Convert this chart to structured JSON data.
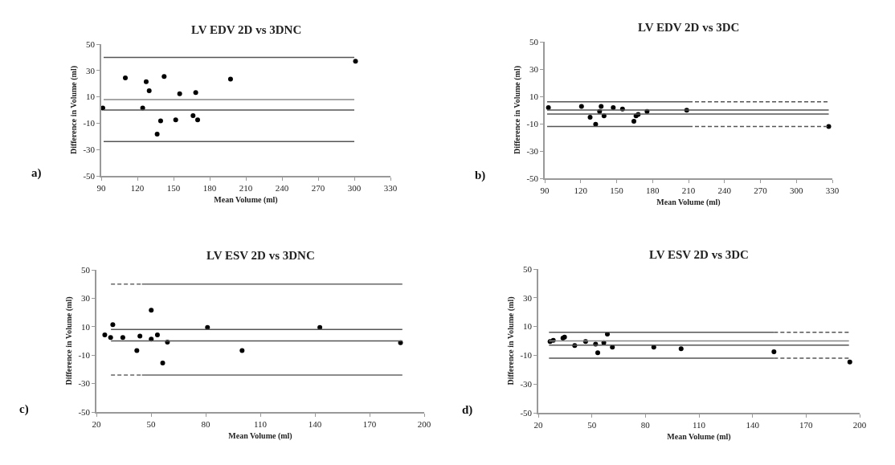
{
  "chart_data": [
    {
      "type": "scatter",
      "title": "LV EDV 2D vs 3DNC",
      "xlabel": "Mean Volume (ml)",
      "ylabel": "Difference in Volume (ml)",
      "annotations": [
        "a)"
      ],
      "grid": false,
      "xlim": [
        90,
        330
      ],
      "xticks": [
        90,
        120,
        150,
        180,
        210,
        240,
        270,
        300,
        330
      ],
      "ylim": [
        -50,
        50
      ],
      "yticks": [
        -50,
        -30,
        -10,
        10,
        30,
        50
      ],
      "series": [
        {
          "type": "scatter",
          "marker": "circle",
          "color": "#000000",
          "x": [
            91.3,
            110,
            127.3,
            129.8,
            124.4,
            142.2,
            139.3,
            136.4,
            151.8,
            155.1,
            168.4,
            166.2,
            170,
            197.3,
            301
          ],
          "values": [
            1.6,
            24.4,
            21.5,
            14.6,
            1.6,
            25.4,
            -8.3,
            -18.3,
            -7.5,
            12.4,
            13.2,
            -4.3,
            -7.5,
            23.4,
            37
          ]
        },
        {
          "type": "line",
          "color": "#555555",
          "line_style": "solid",
          "x": [
            92,
            300
          ],
          "values": [
            40,
            40
          ]
        },
        {
          "type": "line",
          "color": "#888888",
          "line_style": "solid",
          "x": [
            92,
            300
          ],
          "values": [
            8,
            8
          ]
        },
        {
          "type": "line",
          "color": "#555555",
          "line_style": "solid",
          "x": [
            92,
            300
          ],
          "values": [
            0,
            0
          ]
        },
        {
          "type": "line",
          "color": "#555555",
          "line_style": "solid",
          "x": [
            92,
            300
          ],
          "values": [
            -24,
            -24
          ]
        }
      ]
    },
    {
      "type": "scatter",
      "title": "LV EDV 2D vs 3DC",
      "xlabel": "Mean Volume (ml)",
      "ylabel": "Difference in Volume (ml)",
      "annotations": [
        "b)"
      ],
      "grid": false,
      "xlim": [
        90,
        330
      ],
      "xticks": [
        90,
        120,
        150,
        180,
        210,
        240,
        270,
        300,
        330
      ],
      "ylim": [
        -50,
        50
      ],
      "yticks": [
        -50,
        -30,
        -10,
        10,
        30,
        50
      ],
      "series": [
        {
          "type": "scatter",
          "marker": "circle",
          "color": "#000000",
          "x": [
            93.1,
            120.7,
            127.9,
            132.5,
            135.8,
            137.1,
            139.5,
            147.2,
            154.9,
            164.4,
            166.2,
            168,
            175.4,
            208.5,
            327
          ],
          "values": [
            1.8,
            2.7,
            -5.3,
            -10.4,
            -1,
            2.7,
            -4.3,
            1.8,
            0.8,
            -8.2,
            -4.3,
            -3.3,
            -1,
            -0.2,
            -12
          ]
        },
        {
          "type": "line",
          "color": "#555555",
          "line_style": "solid",
          "x": [
            92,
            210
          ],
          "values": [
            6,
            6
          ]
        },
        {
          "type": "line",
          "color": "#555555",
          "line_style": "dashed",
          "x": [
            210,
            327
          ],
          "values": [
            6,
            6
          ]
        },
        {
          "type": "line",
          "color": "#555555",
          "line_style": "solid",
          "x": [
            92,
            327
          ],
          "values": [
            0,
            0
          ]
        },
        {
          "type": "line",
          "color": "#555555",
          "line_style": "solid",
          "x": [
            92,
            327
          ],
          "values": [
            -3,
            -3
          ]
        },
        {
          "type": "line",
          "color": "#555555",
          "line_style": "solid",
          "x": [
            92,
            210
          ],
          "values": [
            -12,
            -12
          ]
        },
        {
          "type": "line",
          "color": "#555555",
          "line_style": "dashed",
          "x": [
            210,
            327
          ],
          "values": [
            -12,
            -12
          ]
        }
      ]
    },
    {
      "type": "scatter",
      "title": "LV ESV 2D vs 3DNC",
      "xlabel": "Mean Volume (ml)",
      "ylabel": "Difference in Volume (ml)",
      "annotations": [
        "c)"
      ],
      "grid": false,
      "xlim": [
        20,
        200
      ],
      "xticks": [
        20,
        50,
        80,
        110,
        140,
        170,
        200
      ],
      "ylim": [
        -50,
        50
      ],
      "yticks": [
        -50,
        -30,
        -10,
        10,
        30,
        50
      ],
      "series": [
        {
          "type": "scatter",
          "marker": "circle",
          "color": "#000000",
          "x": [
            24.6,
            27.8,
            29,
            34.5,
            42.2,
            43.9,
            50.1,
            50.1,
            53.5,
            56.4,
            59,
            81,
            100,
            142.7,
            187
          ],
          "values": [
            4.3,
            2.4,
            11.5,
            2.4,
            -6.8,
            3.4,
            21.6,
            1.3,
            4.3,
            -15.6,
            -0.8,
            9.4,
            -6.8,
            9.4,
            -1.3
          ]
        },
        {
          "type": "line",
          "color": "#666666",
          "line_style": "dashed",
          "x": [
            28,
            45
          ],
          "values": [
            40,
            40
          ]
        },
        {
          "type": "line",
          "color": "#666666",
          "line_style": "solid",
          "x": [
            45,
            188
          ],
          "values": [
            40,
            40
          ]
        },
        {
          "type": "line",
          "color": "#555555",
          "line_style": "solid",
          "x": [
            28,
            188
          ],
          "values": [
            8,
            8
          ]
        },
        {
          "type": "line",
          "color": "#555555",
          "line_style": "solid",
          "x": [
            28,
            188
          ],
          "values": [
            0,
            0
          ]
        },
        {
          "type": "line",
          "color": "#666666",
          "line_style": "dashed",
          "x": [
            28,
            45
          ],
          "values": [
            -24,
            -24
          ]
        },
        {
          "type": "line",
          "color": "#666666",
          "line_style": "solid",
          "x": [
            45,
            188
          ],
          "values": [
            -24,
            -24
          ]
        }
      ]
    },
    {
      "type": "scatter",
      "title": "LV ESV 2D vs 3DC",
      "xlabel": "Mean Volume (ml)",
      "ylabel": "Difference in Volume (ml)",
      "annotations": [
        "d)"
      ],
      "grid": false,
      "xlim": [
        20,
        200
      ],
      "xticks": [
        20,
        50,
        80,
        110,
        140,
        170,
        200
      ],
      "ylim": [
        -50,
        50
      ],
      "yticks": [
        -50,
        -30,
        -10,
        10,
        30,
        50
      ],
      "series": [
        {
          "type": "scatter",
          "marker": "circle",
          "color": "#000000",
          "x": [
            26.6,
            28.4,
            33.8,
            34.7,
            40.4,
            46.5,
            52.1,
            53.3,
            56.7,
            58.7,
            61.5,
            84.7,
            100,
            152,
            194.5
          ],
          "values": [
            -0.4,
            0.4,
            1.9,
            2.6,
            -3.2,
            -0.4,
            -2.3,
            -8.3,
            -1.3,
            4.7,
            -4.3,
            -4.3,
            -5.5,
            -7.6,
            -14.7
          ]
        },
        {
          "type": "line",
          "color": "#555555",
          "line_style": "solid",
          "x": [
            26,
            152
          ],
          "values": [
            6,
            6
          ]
        },
        {
          "type": "line",
          "color": "#555555",
          "line_style": "dashed",
          "x": [
            152,
            194
          ],
          "values": [
            6,
            6
          ]
        },
        {
          "type": "line",
          "color": "#888888",
          "line_style": "solid",
          "x": [
            26,
            194
          ],
          "values": [
            0,
            0
          ]
        },
        {
          "type": "line",
          "color": "#555555",
          "line_style": "solid",
          "x": [
            26,
            194
          ],
          "values": [
            -3,
            -3
          ]
        },
        {
          "type": "line",
          "color": "#555555",
          "line_style": "solid",
          "x": [
            26,
            152
          ],
          "values": [
            -12,
            -12
          ]
        },
        {
          "type": "line",
          "color": "#555555",
          "line_style": "dashed",
          "x": [
            152,
            194
          ],
          "values": [
            -12,
            -12
          ]
        }
      ]
    }
  ]
}
